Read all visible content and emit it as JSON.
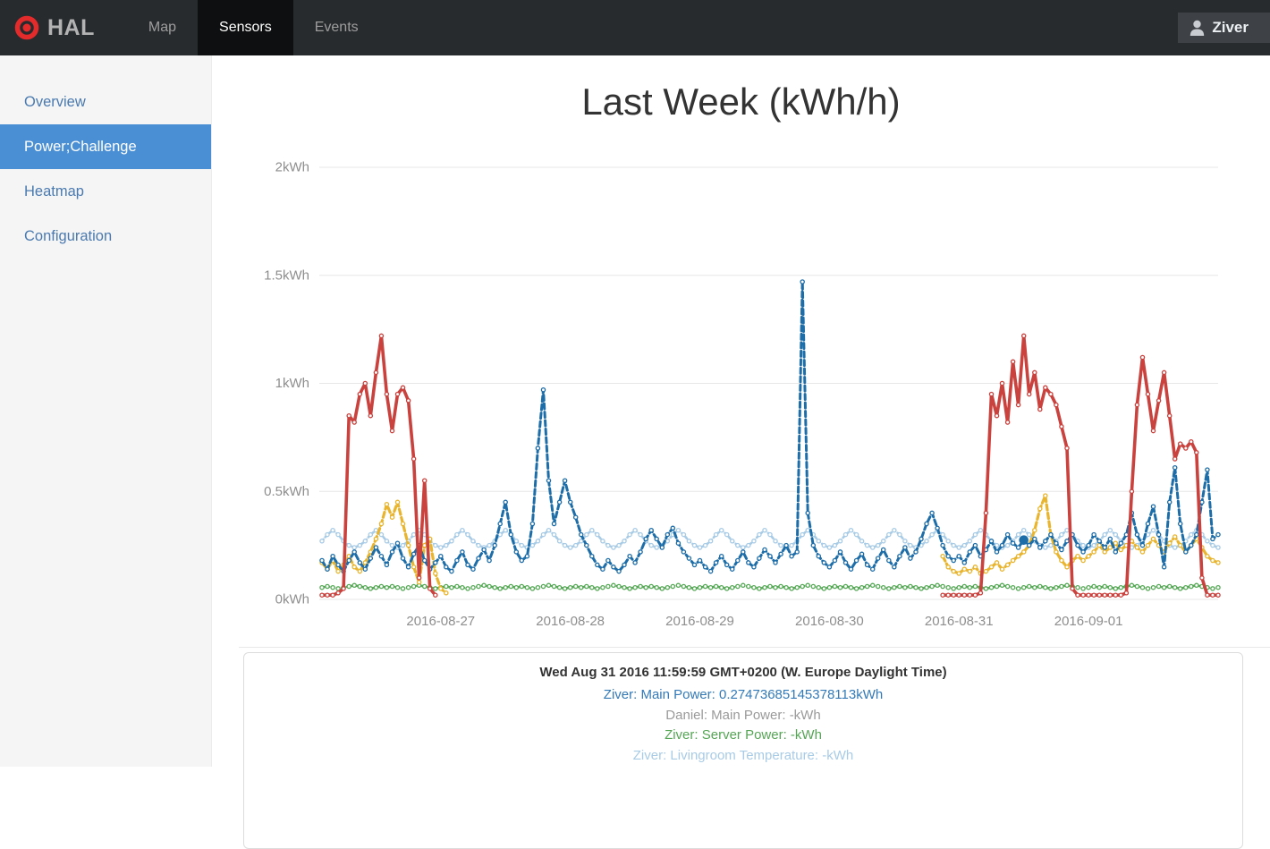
{
  "navbar": {
    "brand": "HAL",
    "tabs": [
      {
        "label": "Map",
        "active": false
      },
      {
        "label": "Sensors",
        "active": true
      },
      {
        "label": "Events",
        "active": false
      }
    ],
    "user": {
      "label": "Ziver"
    }
  },
  "sidebar": {
    "items": [
      {
        "label": "Overview",
        "active": false
      },
      {
        "label": "Power;Challenge",
        "active": true
      },
      {
        "label": "Heatmap",
        "active": false
      },
      {
        "label": "Configuration",
        "active": false
      }
    ]
  },
  "main": {
    "title": "Last Week (kWh/h)"
  },
  "tooltip": {
    "timestamp": "Wed Aug 31 2016 11:59:59 GMT+0200 (W. Europe Daylight Time)",
    "rows": [
      {
        "label": "Ziver: Main Power: 0.27473685145378113kWh",
        "color": "#337ab7"
      },
      {
        "label": "Daniel: Main Power: -kWh",
        "color": "#9a9a9a"
      },
      {
        "label": "Ziver: Server Power: -kWh",
        "color": "#56a556"
      },
      {
        "label": "Ziver: Livingroom Temperature: -kWh",
        "color": "#a8cbe6"
      }
    ]
  },
  "colors": {
    "sidebar_active": "#4a8fd4",
    "navbar_bg": "#282b2e",
    "logo_red": "#e32b2b"
  },
  "chart_data": {
    "type": "line",
    "title": "Last Week (kWh/h)",
    "ylabel": "kWh",
    "ylim": [
      0,
      2
    ],
    "grid": "horizontal",
    "x_start": "2016-08-26 02:00",
    "x_step_hours": 1,
    "x_total_hours": 167,
    "y_ticks": [
      {
        "value": 0,
        "label": "0kWh"
      },
      {
        "value": 0.5,
        "label": "0.5kWh"
      },
      {
        "value": 1,
        "label": "1kWh"
      },
      {
        "value": 1.5,
        "label": "1.5kWh"
      },
      {
        "value": 2,
        "label": "2kWh"
      }
    ],
    "x_ticks": [
      {
        "hour": 22,
        "label": "2016-08-27"
      },
      {
        "hour": 46,
        "label": "2016-08-28"
      },
      {
        "hour": 70,
        "label": "2016-08-29"
      },
      {
        "hour": 94,
        "label": "2016-08-30"
      },
      {
        "hour": 118,
        "label": "2016-08-31"
      },
      {
        "hour": 142,
        "label": "2016-09-01"
      }
    ],
    "hover_point": {
      "series": "Ziver: Main Power",
      "hour": 130,
      "value": 0.27473685145378113,
      "color": "#1d6da8"
    },
    "series": [
      {
        "name": "Ziver: Livingroom Temperature",
        "color": "#a8cbe6",
        "style": "dot",
        "width": 2.6,
        "segments": [
          {
            "start_hour": 0,
            "pattern": [
              0.27,
              0.3,
              0.32,
              0.3,
              0.27,
              0.25,
              0.24,
              0.25
            ],
            "total": 167
          }
        ]
      },
      {
        "name": "Ziver: Server Power",
        "color": "#57a957",
        "style": "dot",
        "width": 2.6,
        "segments": [
          {
            "start_hour": 0,
            "pattern": [
              0.055,
              0.06,
              0.055,
              0.05,
              0.055,
              0.06,
              0.065,
              0.06,
              0.055,
              0.05,
              0.055,
              0.06
            ],
            "total": 167
          }
        ]
      },
      {
        "name": "",
        "color": "#e9b52f",
        "style": "dash",
        "width": 3.2,
        "segments": [
          {
            "start_hour": 0,
            "values": [
              0.17,
              0.14,
              0.18,
              0.13,
              0.16,
              0.2,
              0.15,
              0.13,
              0.17,
              0.22,
              0.28,
              0.35,
              0.44,
              0.38,
              0.45,
              0.35,
              0.25,
              0.15,
              0.08,
              0.25,
              0.28,
              0.12,
              0.05,
              0.03
            ]
          },
          {
            "start_hour": 115,
            "values": [
              0.2,
              0.15,
              0.13,
              0.12,
              0.14,
              0.13,
              0.15,
              0.12,
              0.13,
              0.15,
              0.17,
              0.14,
              0.16,
              0.18,
              0.2,
              0.22,
              0.25,
              0.32,
              0.42,
              0.48,
              0.3,
              0.22,
              0.18,
              0.15,
              0.18,
              0.2,
              0.18,
              0.2,
              0.22,
              0.25,
              0.22,
              0.24,
              0.26,
              0.23,
              0.25,
              0.27,
              0.24,
              0.22,
              0.25,
              0.28,
              0.25,
              0.22,
              0.26,
              0.29,
              0.25,
              0.22,
              0.25,
              0.28,
              0.24,
              0.2,
              0.18,
              0.17
            ]
          }
        ]
      },
      {
        "name": "Ziver: Main Power",
        "color": "#1d6da8",
        "style": "dash",
        "width": 3,
        "segments": [
          {
            "start_hour": 0,
            "values": [
              0.18,
              0.14,
              0.2,
              0.16,
              0.13,
              0.18,
              0.22,
              0.17,
              0.14,
              0.19,
              0.24,
              0.2,
              0.16,
              0.22,
              0.26,
              0.19,
              0.15,
              0.21,
              0.25,
              0.18,
              0.14,
              0.17,
              0.2,
              0.15,
              0.13,
              0.18,
              0.22,
              0.16,
              0.14,
              0.19,
              0.23,
              0.18,
              0.25,
              0.35,
              0.45,
              0.3,
              0.22,
              0.18,
              0.2,
              0.35,
              0.7,
              0.97,
              0.55,
              0.35,
              0.45,
              0.55,
              0.45,
              0.38,
              0.3,
              0.25,
              0.2,
              0.16,
              0.14,
              0.18,
              0.15,
              0.13,
              0.16,
              0.2,
              0.17,
              0.22,
              0.28,
              0.32,
              0.28,
              0.24,
              0.3,
              0.33,
              0.26,
              0.22,
              0.19,
              0.16,
              0.18,
              0.15,
              0.13,
              0.17,
              0.2,
              0.16,
              0.14,
              0.18,
              0.22,
              0.17,
              0.15,
              0.19,
              0.23,
              0.2,
              0.17,
              0.21,
              0.25,
              0.2,
              0.22,
              1.47,
              0.4,
              0.25,
              0.2,
              0.17,
              0.15,
              0.18,
              0.22,
              0.17,
              0.14,
              0.18,
              0.21,
              0.16,
              0.14,
              0.19,
              0.23,
              0.18,
              0.15,
              0.2,
              0.24,
              0.19,
              0.22,
              0.28,
              0.35,
              0.4,
              0.33,
              0.25,
              0.2,
              0.18,
              0.2,
              0.17,
              0.22,
              0.25,
              0.2,
              0.23,
              0.27,
              0.22,
              0.25,
              0.3,
              0.26,
              0.24,
              0.2747,
              0.25,
              0.28,
              0.24,
              0.27,
              0.3,
              0.26,
              0.23,
              0.27,
              0.3,
              0.25,
              0.22,
              0.25,
              0.3,
              0.27,
              0.24,
              0.28,
              0.22,
              0.26,
              0.3,
              0.4,
              0.3,
              0.25,
              0.35,
              0.43,
              0.3,
              0.15,
              0.45,
              0.61,
              0.35,
              0.22,
              0.25,
              0.3,
              0.45,
              0.6,
              0.28,
              0.3
            ]
          }
        ]
      },
      {
        "name": "Daniel: Main Power",
        "color": "#ca423e",
        "style": "solid",
        "width": 3.6,
        "segments": [
          {
            "start_hour": 0,
            "values": [
              0.02,
              0.02,
              0.02,
              0.03,
              0.05,
              0.85,
              0.82,
              0.95,
              1.0,
              0.85,
              1.05,
              1.22,
              0.95,
              0.78,
              0.95,
              0.98,
              0.92,
              0.65,
              0.1,
              0.55,
              0.05,
              0.02
            ]
          },
          {
            "start_hour": 115,
            "values": [
              0.02,
              0.02,
              0.02,
              0.02,
              0.02,
              0.02,
              0.02,
              0.03,
              0.4,
              0.95,
              0.85,
              1.0,
              0.82,
              1.1,
              0.9,
              1.22,
              0.95,
              1.05,
              0.88,
              0.98,
              0.95,
              0.9,
              0.8,
              0.7,
              0.05,
              0.02,
              0.02,
              0.02,
              0.02,
              0.02,
              0.02,
              0.02,
              0.02,
              0.02,
              0.03,
              0.5,
              0.9,
              1.12,
              0.95,
              0.78,
              0.92,
              1.05,
              0.85,
              0.65,
              0.72,
              0.7,
              0.73,
              0.68,
              0.1,
              0.02,
              0.02,
              0.02
            ]
          }
        ]
      }
    ]
  }
}
